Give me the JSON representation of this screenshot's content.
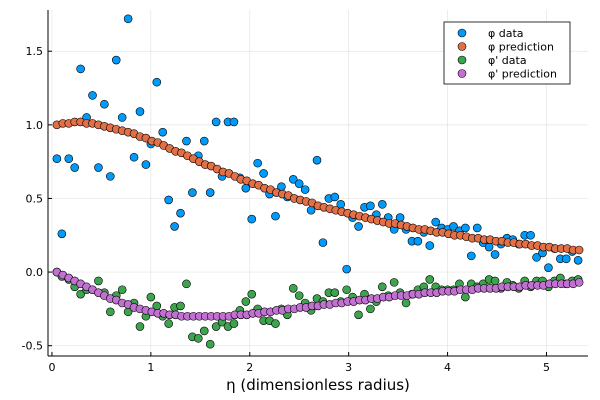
{
  "chart_data": {
    "type": "scatter",
    "title": "",
    "xlabel": "η (dimensionless radius)",
    "ylabel": "",
    "xlim": [
      -0.04,
      5.42
    ],
    "ylim": [
      -0.57,
      1.78
    ],
    "xticks": [
      0,
      1,
      2,
      3,
      4,
      5
    ],
    "xtick_labels": [
      "0",
      "1",
      "2",
      "3",
      "4",
      "5"
    ],
    "yticks": [
      -0.5,
      0.0,
      0.5,
      1.0,
      1.5
    ],
    "ytick_labels": [
      "-0.5",
      "0.0",
      "0.5",
      "1.0",
      "1.5"
    ],
    "grid": true,
    "legend_position": "top-right",
    "series": [
      {
        "name": "φ data",
        "color": "#009AFA",
        "x": [
          0.05,
          0.1,
          0.17,
          0.23,
          0.29,
          0.35,
          0.41,
          0.47,
          0.53,
          0.59,
          0.65,
          0.71,
          0.77,
          0.83,
          0.89,
          0.95,
          1.0,
          1.06,
          1.12,
          1.18,
          1.24,
          1.3,
          1.36,
          1.42,
          1.48,
          1.54,
          1.6,
          1.66,
          1.72,
          1.78,
          1.84,
          1.9,
          1.96,
          2.02,
          2.08,
          2.14,
          2.2,
          2.26,
          2.32,
          2.38,
          2.44,
          2.5,
          2.56,
          2.62,
          2.68,
          2.74,
          2.8,
          2.86,
          2.92,
          2.98,
          3.04,
          3.1,
          3.16,
          3.22,
          3.28,
          3.34,
          3.4,
          3.46,
          3.52,
          3.58,
          3.64,
          3.7,
          3.76,
          3.82,
          3.88,
          3.94,
          4.0,
          4.06,
          4.12,
          4.18,
          4.24,
          4.3,
          4.36,
          4.42,
          4.48,
          4.54,
          4.6,
          4.66,
          4.72,
          4.78,
          4.84,
          4.9,
          4.96,
          5.02,
          5.08,
          5.14,
          5.2,
          5.26,
          5.32
        ],
        "y": [
          0.77,
          0.26,
          0.77,
          0.71,
          1.38,
          1.05,
          1.2,
          0.71,
          1.14,
          0.65,
          1.44,
          1.05,
          1.72,
          0.78,
          1.09,
          0.73,
          0.87,
          1.29,
          0.95,
          0.49,
          0.31,
          0.4,
          0.89,
          0.54,
          0.79,
          0.89,
          0.54,
          1.02,
          0.65,
          1.02,
          1.02,
          0.64,
          0.57,
          0.36,
          0.74,
          0.67,
          0.53,
          0.38,
          0.58,
          0.51,
          0.63,
          0.6,
          0.56,
          0.42,
          0.76,
          0.2,
          0.5,
          0.51,
          0.46,
          0.02,
          0.37,
          0.31,
          0.44,
          0.45,
          0.39,
          0.46,
          0.37,
          0.29,
          0.37,
          0.29,
          0.21,
          0.21,
          0.27,
          0.18,
          0.34,
          0.3,
          0.29,
          0.31,
          0.28,
          0.3,
          0.11,
          0.3,
          0.2,
          0.17,
          0.12,
          0.19,
          0.23,
          0.22,
          0.19,
          0.25,
          0.25,
          0.1,
          0.13,
          0.03,
          0.16,
          0.09,
          0.09,
          0.14,
          0.08
        ]
      },
      {
        "name": "φ prediction",
        "color": "#E26F46",
        "x": [
          0.05,
          0.11,
          0.17,
          0.23,
          0.29,
          0.35,
          0.41,
          0.47,
          0.53,
          0.59,
          0.65,
          0.71,
          0.77,
          0.83,
          0.89,
          0.95,
          1.01,
          1.07,
          1.13,
          1.19,
          1.25,
          1.31,
          1.37,
          1.43,
          1.49,
          1.55,
          1.61,
          1.67,
          1.73,
          1.79,
          1.85,
          1.91,
          1.97,
          2.03,
          2.09,
          2.15,
          2.21,
          2.27,
          2.33,
          2.39,
          2.45,
          2.51,
          2.57,
          2.63,
          2.69,
          2.75,
          2.81,
          2.87,
          2.93,
          2.99,
          3.05,
          3.11,
          3.17,
          3.23,
          3.29,
          3.35,
          3.41,
          3.47,
          3.53,
          3.59,
          3.65,
          3.71,
          3.77,
          3.83,
          3.89,
          3.95,
          4.01,
          4.07,
          4.13,
          4.19,
          4.25,
          4.31,
          4.37,
          4.43,
          4.49,
          4.55,
          4.61,
          4.67,
          4.73,
          4.79,
          4.85,
          4.91,
          4.97,
          5.03,
          5.09,
          5.15,
          5.21,
          5.27,
          5.33
        ],
        "y": [
          1.0,
          1.01,
          1.01,
          1.02,
          1.02,
          1.01,
          1.01,
          1.0,
          0.99,
          0.98,
          0.97,
          0.96,
          0.95,
          0.94,
          0.92,
          0.91,
          0.89,
          0.88,
          0.86,
          0.84,
          0.82,
          0.81,
          0.79,
          0.77,
          0.75,
          0.73,
          0.72,
          0.7,
          0.68,
          0.67,
          0.65,
          0.63,
          0.62,
          0.6,
          0.59,
          0.57,
          0.56,
          0.54,
          0.53,
          0.52,
          0.5,
          0.49,
          0.48,
          0.47,
          0.45,
          0.44,
          0.43,
          0.42,
          0.41,
          0.4,
          0.39,
          0.38,
          0.37,
          0.36,
          0.35,
          0.34,
          0.33,
          0.33,
          0.32,
          0.31,
          0.3,
          0.29,
          0.29,
          0.28,
          0.27,
          0.27,
          0.26,
          0.25,
          0.25,
          0.24,
          0.23,
          0.23,
          0.22,
          0.22,
          0.21,
          0.21,
          0.2,
          0.2,
          0.19,
          0.19,
          0.18,
          0.18,
          0.17,
          0.17,
          0.16,
          0.16,
          0.16,
          0.15,
          0.15
        ]
      },
      {
        "name": "φ' data",
        "color": "#3DA44E",
        "x": [
          0.05,
          0.1,
          0.17,
          0.23,
          0.29,
          0.35,
          0.41,
          0.47,
          0.53,
          0.59,
          0.65,
          0.71,
          0.77,
          0.83,
          0.89,
          0.95,
          1.0,
          1.06,
          1.12,
          1.18,
          1.24,
          1.3,
          1.36,
          1.42,
          1.48,
          1.54,
          1.6,
          1.66,
          1.72,
          1.78,
          1.84,
          1.9,
          1.96,
          2.02,
          2.08,
          2.14,
          2.2,
          2.26,
          2.32,
          2.38,
          2.44,
          2.5,
          2.56,
          2.62,
          2.68,
          2.74,
          2.8,
          2.86,
          2.92,
          2.98,
          3.04,
          3.1,
          3.16,
          3.22,
          3.28,
          3.34,
          3.4,
          3.46,
          3.52,
          3.58,
          3.64,
          3.7,
          3.76,
          3.82,
          3.88,
          3.94,
          4.0,
          4.06,
          4.12,
          4.18,
          4.24,
          4.3,
          4.36,
          4.42,
          4.48,
          4.54,
          4.6,
          4.66,
          4.72,
          4.78,
          4.84,
          4.9,
          4.96,
          5.02,
          5.08,
          5.14,
          5.2,
          5.26,
          5.32
        ],
        "y": [
          0.0,
          -0.03,
          -0.05,
          -0.1,
          -0.15,
          -0.12,
          -0.12,
          -0.06,
          -0.14,
          -0.27,
          -0.16,
          -0.12,
          -0.27,
          -0.21,
          -0.37,
          -0.3,
          -0.17,
          -0.23,
          -0.3,
          -0.35,
          -0.24,
          -0.23,
          -0.08,
          -0.44,
          -0.45,
          -0.4,
          -0.49,
          -0.37,
          -0.34,
          -0.37,
          -0.35,
          -0.26,
          -0.2,
          -0.15,
          -0.25,
          -0.33,
          -0.33,
          -0.35,
          -0.25,
          -0.29,
          -0.11,
          -0.16,
          -0.21,
          -0.26,
          -0.18,
          -0.2,
          -0.14,
          -0.14,
          -0.2,
          -0.12,
          -0.17,
          -0.29,
          -0.15,
          -0.25,
          -0.2,
          -0.1,
          -0.16,
          -0.07,
          -0.14,
          -0.21,
          -0.15,
          -0.12,
          -0.1,
          -0.05,
          -0.1,
          -0.12,
          -0.12,
          -0.12,
          -0.08,
          -0.17,
          -0.08,
          -0.1,
          -0.08,
          -0.05,
          -0.06,
          -0.11,
          -0.07,
          -0.09,
          -0.11,
          -0.06,
          -0.1,
          -0.06,
          -0.06,
          -0.1,
          -0.06,
          -0.04,
          -0.08,
          -0.06,
          -0.05
        ]
      },
      {
        "name": "φ' prediction",
        "color": "#C271D2",
        "x": [
          0.05,
          0.11,
          0.17,
          0.23,
          0.29,
          0.35,
          0.41,
          0.47,
          0.53,
          0.59,
          0.65,
          0.71,
          0.77,
          0.83,
          0.89,
          0.95,
          1.01,
          1.07,
          1.13,
          1.19,
          1.25,
          1.31,
          1.37,
          1.43,
          1.49,
          1.55,
          1.61,
          1.67,
          1.73,
          1.79,
          1.85,
          1.91,
          1.97,
          2.03,
          2.09,
          2.15,
          2.21,
          2.27,
          2.33,
          2.39,
          2.45,
          2.51,
          2.57,
          2.63,
          2.69,
          2.75,
          2.81,
          2.87,
          2.93,
          2.99,
          3.05,
          3.11,
          3.17,
          3.23,
          3.29,
          3.35,
          3.41,
          3.47,
          3.53,
          3.59,
          3.65,
          3.71,
          3.77,
          3.83,
          3.89,
          3.95,
          4.01,
          4.07,
          4.13,
          4.19,
          4.25,
          4.31,
          4.37,
          4.43,
          4.49,
          4.55,
          4.61,
          4.67,
          4.73,
          4.79,
          4.85,
          4.91,
          4.97,
          5.03,
          5.09,
          5.15,
          5.21,
          5.27,
          5.33
        ],
        "y": [
          0.0,
          -0.02,
          -0.04,
          -0.06,
          -0.08,
          -0.1,
          -0.12,
          -0.14,
          -0.16,
          -0.18,
          -0.19,
          -0.21,
          -0.22,
          -0.24,
          -0.25,
          -0.26,
          -0.27,
          -0.28,
          -0.28,
          -0.29,
          -0.29,
          -0.3,
          -0.3,
          -0.3,
          -0.3,
          -0.3,
          -0.3,
          -0.3,
          -0.3,
          -0.3,
          -0.29,
          -0.29,
          -0.29,
          -0.28,
          -0.28,
          -0.27,
          -0.27,
          -0.26,
          -0.26,
          -0.25,
          -0.25,
          -0.24,
          -0.24,
          -0.23,
          -0.23,
          -0.22,
          -0.22,
          -0.21,
          -0.21,
          -0.2,
          -0.2,
          -0.19,
          -0.19,
          -0.18,
          -0.18,
          -0.17,
          -0.17,
          -0.16,
          -0.16,
          -0.16,
          -0.15,
          -0.15,
          -0.14,
          -0.14,
          -0.14,
          -0.13,
          -0.13,
          -0.13,
          -0.12,
          -0.12,
          -0.12,
          -0.11,
          -0.11,
          -0.11,
          -0.11,
          -0.1,
          -0.1,
          -0.1,
          -0.1,
          -0.09,
          -0.09,
          -0.09,
          -0.09,
          -0.08,
          -0.08,
          -0.08,
          -0.08,
          -0.08,
          -0.07
        ]
      }
    ]
  }
}
